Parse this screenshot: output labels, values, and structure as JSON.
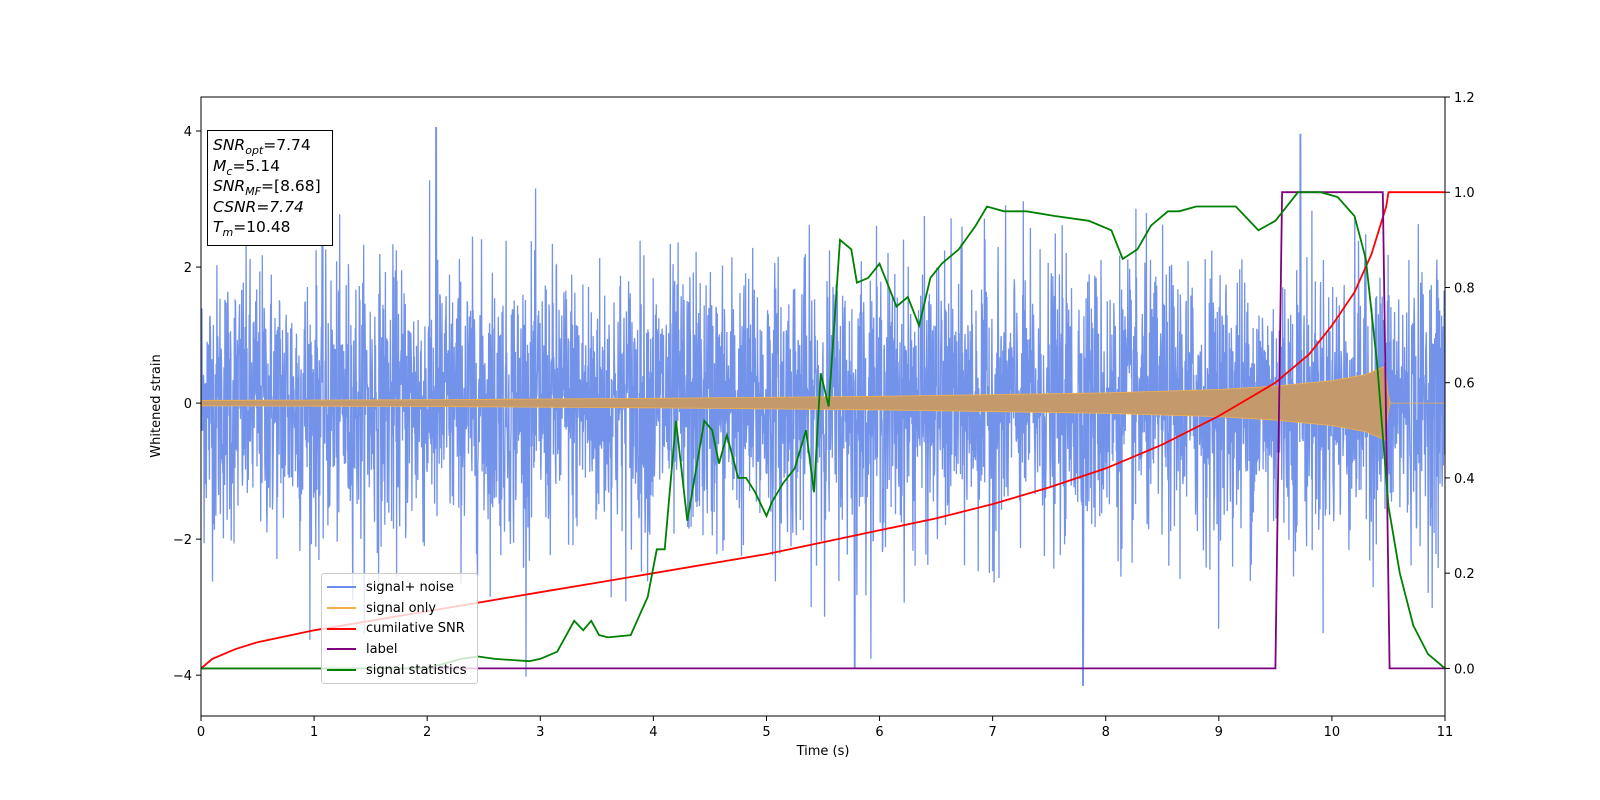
{
  "chart_data": {
    "type": "line",
    "xlabel": "Time (s)",
    "ylabel": "Whitened strain",
    "xlim": [
      0,
      11
    ],
    "ylim": [
      -4.6,
      4.5
    ],
    "y2lim": [
      -0.1,
      1.2
    ],
    "xticks": [
      "0",
      "1",
      "2",
      "3",
      "4",
      "5",
      "6",
      "7",
      "8",
      "9",
      "10",
      "11"
    ],
    "yticks": [
      "4",
      "2",
      "0",
      "−2",
      "−4"
    ],
    "y2ticks": [
      "1.2",
      "1.0",
      "0.8",
      "0.6",
      "0.4",
      "0.2",
      "0.0"
    ],
    "grid": false,
    "legend_position": "lower-left",
    "colors": {
      "signal_noise": "#6b8ce8",
      "signal_only": "#f5b04a",
      "signal_fill": "#c49a6c",
      "cumulative_snr": "#ff0000",
      "label": "#800080",
      "signal_statistics": "#008000"
    },
    "series": [
      {
        "name": "signal+ noise",
        "axis": "left",
        "description_values": "dense Gaussian-like noise, mostly within ±2, peaks up to about 4.05 near t=2.08 and down to about -4.15 near t=7.8"
      },
      {
        "name": "signal only",
        "axis": "left",
        "envelope_x": [
          0,
          2,
          4,
          6,
          8,
          9,
          9.5,
          10,
          10.3,
          10.48,
          10.5,
          11
        ],
        "envelope_y": [
          0.04,
          0.05,
          0.07,
          0.1,
          0.15,
          0.2,
          0.25,
          0.33,
          0.42,
          0.55,
          0.0,
          0.0
        ]
      },
      {
        "name": "cumilative SNR",
        "axis": "right",
        "x": [
          0,
          0.1,
          0.3,
          0.5,
          1.0,
          1.5,
          2.0,
          2.5,
          3.0,
          3.5,
          4.0,
          4.5,
          5.0,
          5.5,
          6.0,
          6.5,
          7.0,
          7.5,
          8.0,
          8.5,
          9.0,
          9.5,
          9.8,
          10.0,
          10.2,
          10.35,
          10.48,
          10.5,
          11
        ],
        "y": [
          0.0,
          0.02,
          0.04,
          0.055,
          0.08,
          0.1,
          0.12,
          0.14,
          0.16,
          0.18,
          0.2,
          0.22,
          0.24,
          0.265,
          0.29,
          0.315,
          0.345,
          0.38,
          0.42,
          0.47,
          0.53,
          0.6,
          0.66,
          0.72,
          0.79,
          0.87,
          0.97,
          1.0,
          1.0
        ]
      },
      {
        "name": "label",
        "axis": "right",
        "x": [
          0,
          9.5,
          9.56,
          10.45,
          10.51,
          11
        ],
        "y": [
          0.0,
          0.0,
          1.0,
          1.0,
          0.0,
          0.0
        ]
      },
      {
        "name": "signal statistics",
        "axis": "right",
        "x": [
          0,
          0.5,
          1.0,
          1.5,
          2.0,
          2.3,
          2.45,
          2.6,
          2.9,
          3.0,
          3.15,
          3.3,
          3.38,
          3.45,
          3.52,
          3.6,
          3.8,
          3.95,
          4.03,
          4.1,
          4.2,
          4.3,
          4.45,
          4.52,
          4.58,
          4.65,
          4.75,
          4.82,
          4.9,
          5.0,
          5.05,
          5.15,
          5.25,
          5.35,
          5.42,
          5.48,
          5.55,
          5.65,
          5.75,
          5.8,
          5.9,
          6.0,
          6.05,
          6.15,
          6.25,
          6.35,
          6.45,
          6.55,
          6.7,
          6.85,
          6.95,
          7.1,
          7.3,
          7.55,
          7.85,
          8.05,
          8.15,
          8.28,
          8.4,
          8.55,
          8.65,
          8.8,
          9.0,
          9.15,
          9.35,
          9.5,
          9.7,
          9.9,
          10.05,
          10.2,
          10.3,
          10.4,
          10.5,
          10.6,
          10.72,
          10.85,
          10.95,
          11.0
        ],
        "y": [
          0.0,
          0.0,
          0.0,
          0.0,
          0.0,
          0.02,
          0.025,
          0.02,
          0.015,
          0.02,
          0.035,
          0.1,
          0.08,
          0.1,
          0.07,
          0.065,
          0.07,
          0.15,
          0.25,
          0.25,
          0.52,
          0.31,
          0.52,
          0.5,
          0.43,
          0.49,
          0.4,
          0.4,
          0.37,
          0.32,
          0.35,
          0.39,
          0.42,
          0.5,
          0.37,
          0.62,
          0.55,
          0.9,
          0.88,
          0.81,
          0.82,
          0.85,
          0.82,
          0.76,
          0.78,
          0.72,
          0.82,
          0.85,
          0.88,
          0.93,
          0.97,
          0.96,
          0.96,
          0.95,
          0.94,
          0.92,
          0.86,
          0.88,
          0.93,
          0.96,
          0.96,
          0.97,
          0.97,
          0.97,
          0.92,
          0.94,
          1.0,
          1.0,
          0.99,
          0.95,
          0.86,
          0.64,
          0.34,
          0.2,
          0.09,
          0.03,
          0.01,
          0.0
        ]
      }
    ],
    "annotations": {
      "snr_opt": "=7.74",
      "mc": "=5.14",
      "snr_mf": "=[8.68]",
      "csnr": "CSNR=7.74",
      "tm": "=10.48"
    }
  },
  "legend": {
    "items": [
      "signal+ noise",
      "signal only",
      "cumilative SNR",
      "label",
      "signal statistics"
    ]
  },
  "infobox": {
    "snr_sym": "SNR",
    "snr_opt_sub": "opt",
    "snr_opt_val": "=7.74",
    "mc_sym": "M",
    "mc_sub": "c",
    "mc_val": "=5.14",
    "mf_sub": "MF",
    "mf_val": "=[8.68]",
    "csnr_text": "CSNR=7.74",
    "tm_sym": "T",
    "tm_sub": "m",
    "tm_val": "=10.48"
  }
}
